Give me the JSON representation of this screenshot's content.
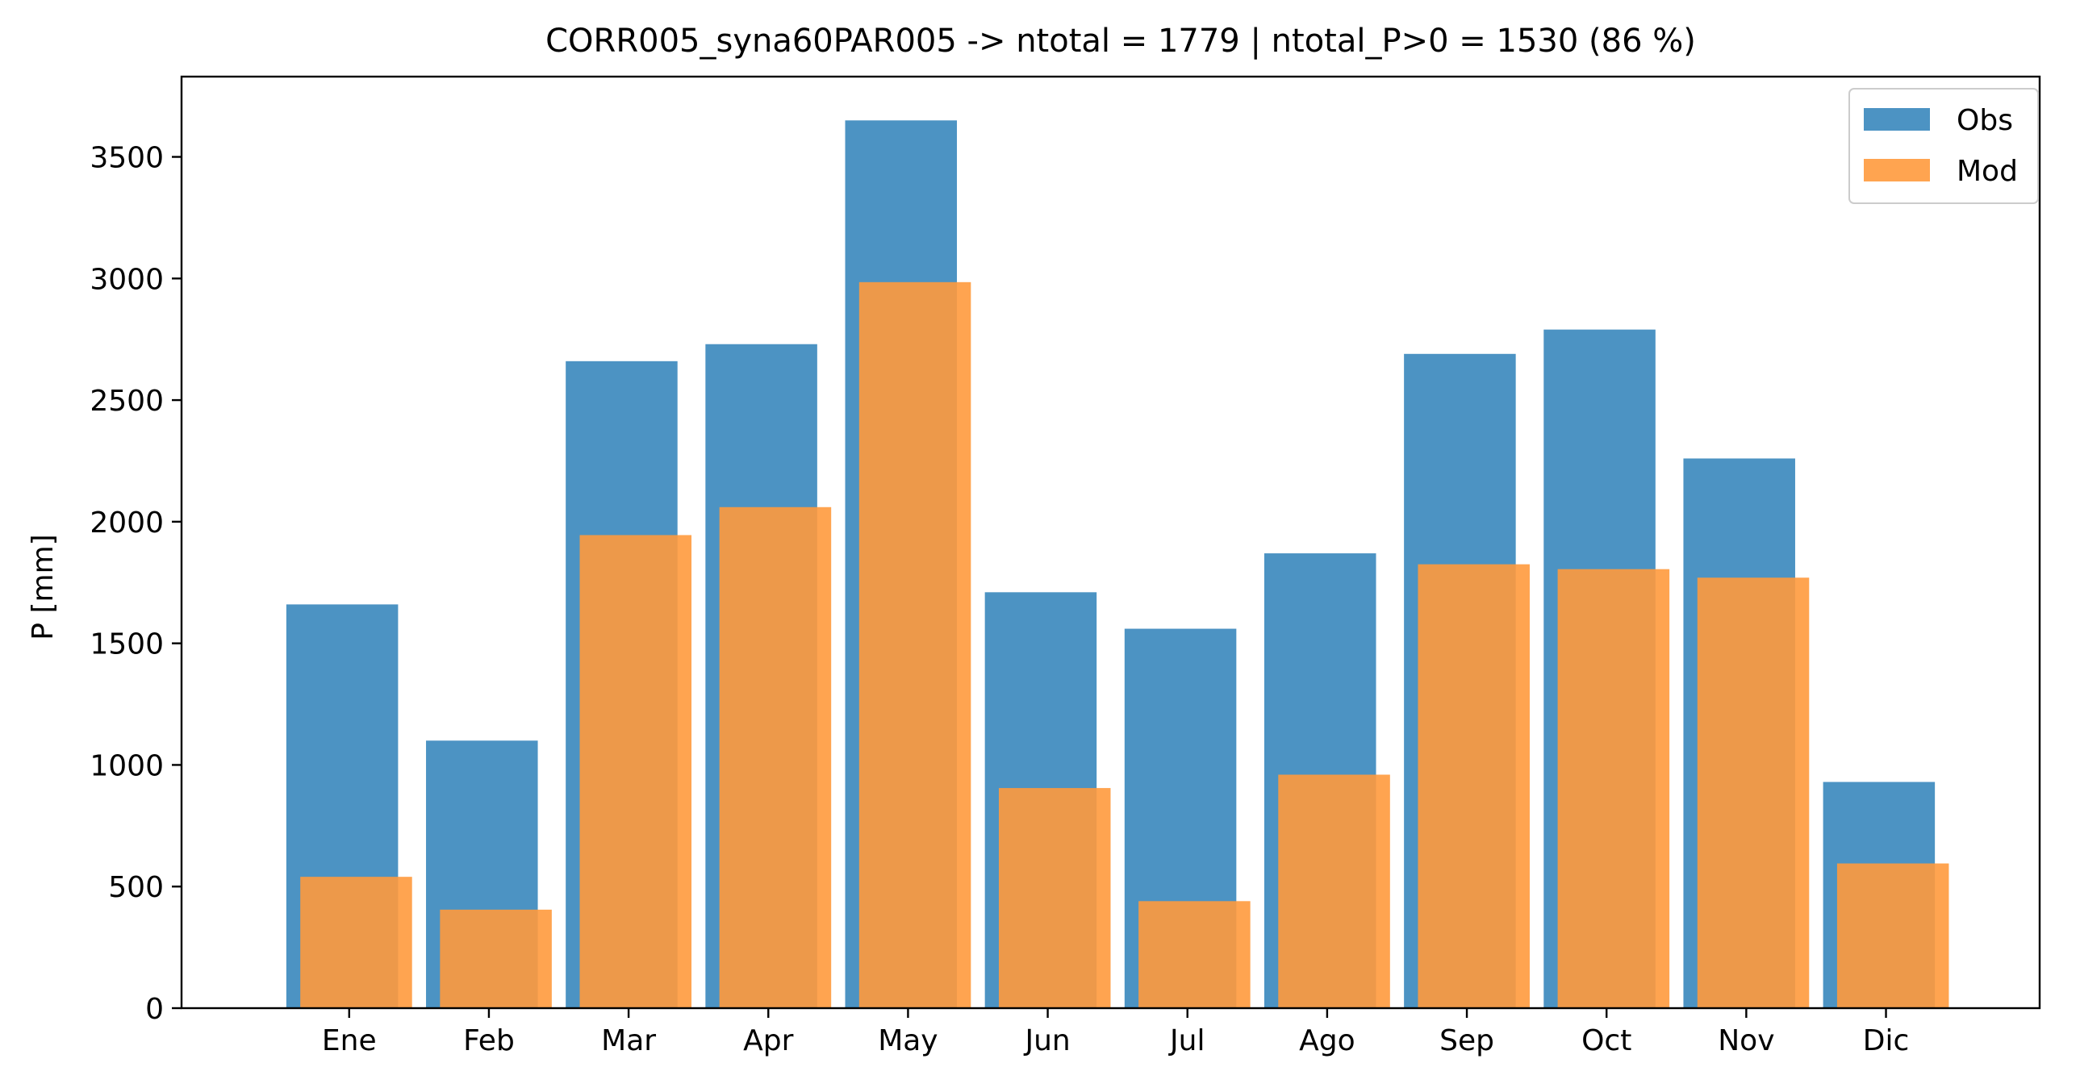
{
  "chart_data": {
    "type": "bar",
    "title": "CORR005_syna60PAR005 -> ntotal = 1779 | ntotal_P>0 = 1530 (86 %)",
    "xlabel": "",
    "ylabel": "P [mm]",
    "categories": [
      "Ene",
      "Feb",
      "Mar",
      "Apr",
      "May",
      "Jun",
      "Jul",
      "Ago",
      "Sep",
      "Oct",
      "Nov",
      "Dic"
    ],
    "series": [
      {
        "name": "Obs",
        "color": "#4c93c3",
        "values": [
          1660,
          1100,
          2660,
          2730,
          3650,
          1710,
          1560,
          1870,
          2690,
          2790,
          2260,
          930
        ]
      },
      {
        "name": "Mod",
        "color": "#ff9a3d",
        "values": [
          540,
          405,
          1945,
          2060,
          2985,
          905,
          440,
          960,
          1825,
          1805,
          1770,
          595
        ]
      }
    ],
    "ylim": [
      0,
      3830
    ],
    "yticks": [
      0,
      500,
      1000,
      1500,
      2000,
      2500,
      3000,
      3500
    ],
    "grid": false,
    "legend_position": "top-right"
  }
}
